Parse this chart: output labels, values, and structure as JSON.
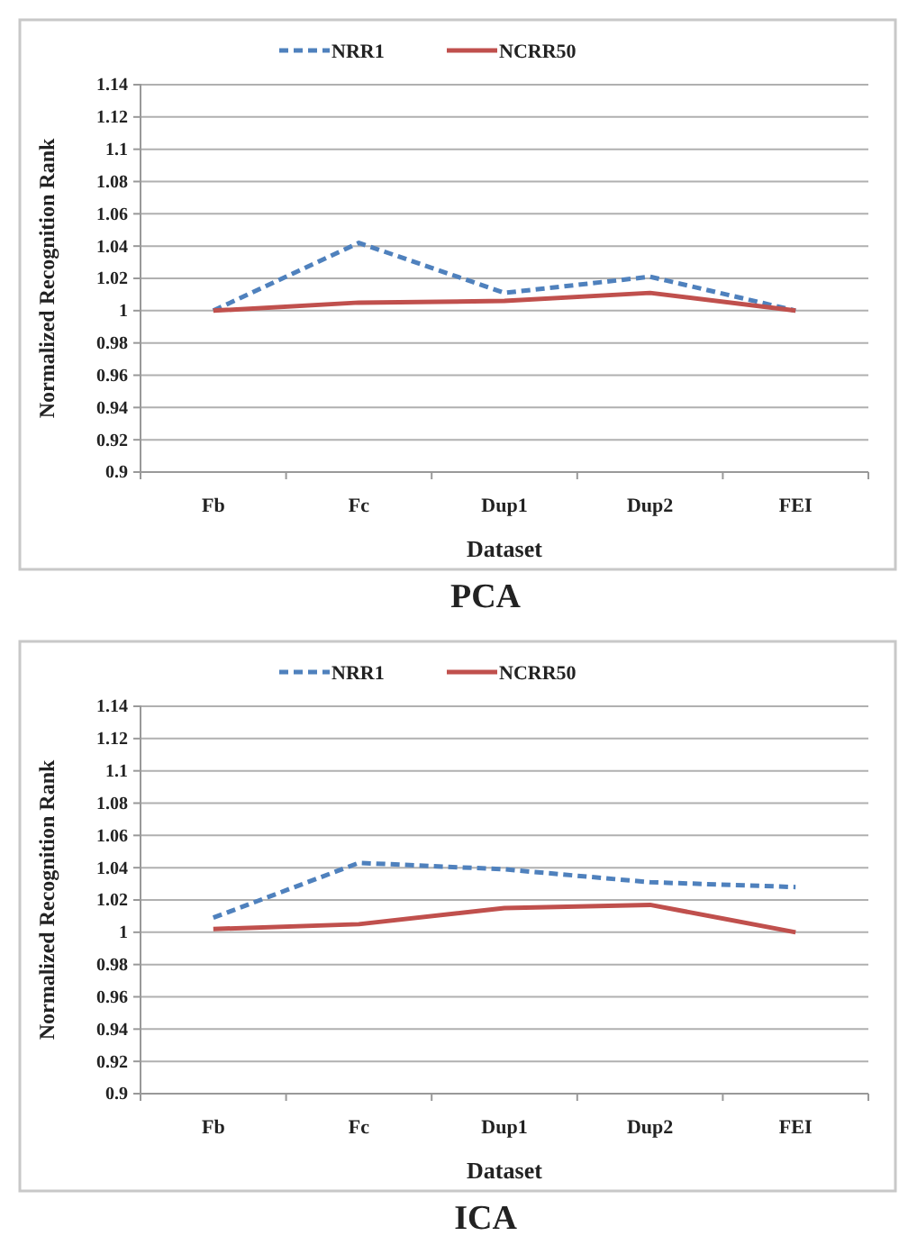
{
  "chart_data": [
    {
      "type": "line",
      "title": "PCA",
      "xlabel": "Dataset",
      "ylabel": "Normalized Recognition Rank",
      "categories": [
        "Fb",
        "Fc",
        "Dup1",
        "Dup2",
        "FEI"
      ],
      "ylim": [
        0.9,
        1.14
      ],
      "yticks": [
        0.9,
        0.92,
        0.94,
        0.96,
        0.98,
        1,
        1.02,
        1.04,
        1.06,
        1.08,
        1.1,
        1.12,
        1.14
      ],
      "grid": "y",
      "legend": "top",
      "marker": "none",
      "series": [
        {
          "name": "NRR1",
          "color": "#4f81bd",
          "line_style": "dashed",
          "values": [
            1,
            1.042,
            1.011,
            1.021,
            1
          ]
        },
        {
          "name": "NCRR50",
          "color": "#c0504d",
          "line_style": "solid",
          "values": [
            1,
            1.005,
            1.006,
            1.011,
            1
          ]
        }
      ]
    },
    {
      "type": "line",
      "title": "ICA",
      "xlabel": "Dataset",
      "ylabel": "Normalized Recognition Rank",
      "categories": [
        "Fb",
        "Fc",
        "Dup1",
        "Dup2",
        "FEI"
      ],
      "ylim": [
        0.9,
        1.14
      ],
      "yticks": [
        0.9,
        0.92,
        0.94,
        0.96,
        0.98,
        1,
        1.02,
        1.04,
        1.06,
        1.08,
        1.1,
        1.12,
        1.14
      ],
      "grid": "y",
      "legend": "top",
      "marker": "none",
      "series": [
        {
          "name": "NRR1",
          "color": "#4f81bd",
          "line_style": "dashed",
          "values": [
            1.009,
            1.043,
            1.039,
            1.031,
            1.028
          ]
        },
        {
          "name": "NCRR50",
          "color": "#c0504d",
          "line_style": "solid",
          "values": [
            1.002,
            1.005,
            1.015,
            1.017,
            1
          ]
        }
      ]
    }
  ]
}
